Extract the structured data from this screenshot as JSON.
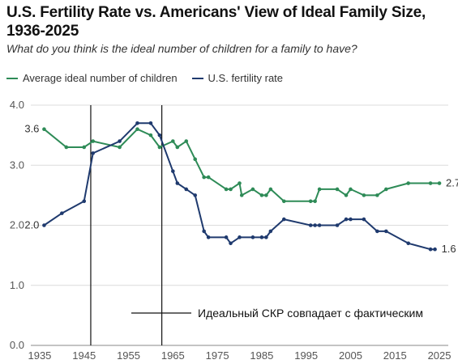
{
  "chart_data": {
    "type": "line",
    "title": "U.S. Fertility Rate vs. Americans' View of Ideal Family Size, 1936-2025",
    "subtitle": "What do you think is the ideal number of children for a family to have?",
    "xlabel": "",
    "ylabel": "",
    "xlim": [
      1933,
      2027
    ],
    "ylim": [
      0,
      4
    ],
    "x_ticks": [
      1935,
      1945,
      1955,
      1965,
      1975,
      1985,
      1995,
      2005,
      2015,
      2025
    ],
    "y_ticks": [
      0,
      1,
      2,
      3,
      4
    ],
    "y_tick_labels": [
      "0.0",
      "1.0",
      "2.0",
      "3.0",
      "4.0"
    ],
    "grid": "horizontal",
    "legend_position": "top-left",
    "series": [
      {
        "name": "Average ideal number of children",
        "color": "#2e8b57",
        "x": [
          1936,
          1941,
          1945,
          1947,
          1953,
          1957,
          1960,
          1962,
          1965,
          1966,
          1968,
          1970,
          1972,
          1973,
          1977,
          1978,
          1980,
          1980.5,
          1983,
          1985,
          1986,
          1987,
          1990,
          1996,
          1997,
          1998,
          2002,
          2004,
          2005,
          2008,
          2011,
          2013,
          2018,
          2023,
          2025
        ],
        "y": [
          3.6,
          3.3,
          3.3,
          3.4,
          3.3,
          3.6,
          3.5,
          3.3,
          3.4,
          3.3,
          3.4,
          3.1,
          2.8,
          2.8,
          2.6,
          2.6,
          2.7,
          2.5,
          2.6,
          2.5,
          2.5,
          2.6,
          2.4,
          2.4,
          2.4,
          2.6,
          2.6,
          2.5,
          2.6,
          2.5,
          2.5,
          2.6,
          2.7,
          2.7,
          2.7
        ],
        "end_labels": [
          "3.6",
          "2.7"
        ]
      },
      {
        "name": "U.S. fertility rate",
        "color": "#1f3a6e",
        "x": [
          1936,
          1940,
          1945,
          1947,
          1953,
          1957,
          1960,
          1962,
          1965,
          1966,
          1968,
          1970,
          1972,
          1973,
          1977,
          1978,
          1980,
          1983,
          1985,
          1986,
          1987,
          1990,
          1996,
          1997,
          1998,
          2002,
          2004,
          2005,
          2008,
          2011,
          2013,
          2018,
          2023,
          2024
        ],
        "y": [
          2.0,
          2.2,
          2.4,
          3.2,
          3.4,
          3.7,
          3.7,
          3.5,
          2.9,
          2.7,
          2.6,
          2.5,
          1.9,
          1.8,
          1.8,
          1.7,
          1.8,
          1.8,
          1.8,
          1.8,
          1.9,
          2.1,
          2.0,
          2.0,
          2.0,
          2.0,
          2.1,
          2.1,
          2.1,
          1.9,
          1.9,
          1.7,
          1.6,
          1.6
        ],
        "end_labels": [
          "2.0",
          "1.6"
        ]
      }
    ],
    "reference_lines": [
      {
        "x": 1946.5
      },
      {
        "x": 1962.5
      }
    ],
    "annotation": {
      "text": "Идеальный СКР совпадает с фактическим"
    }
  }
}
